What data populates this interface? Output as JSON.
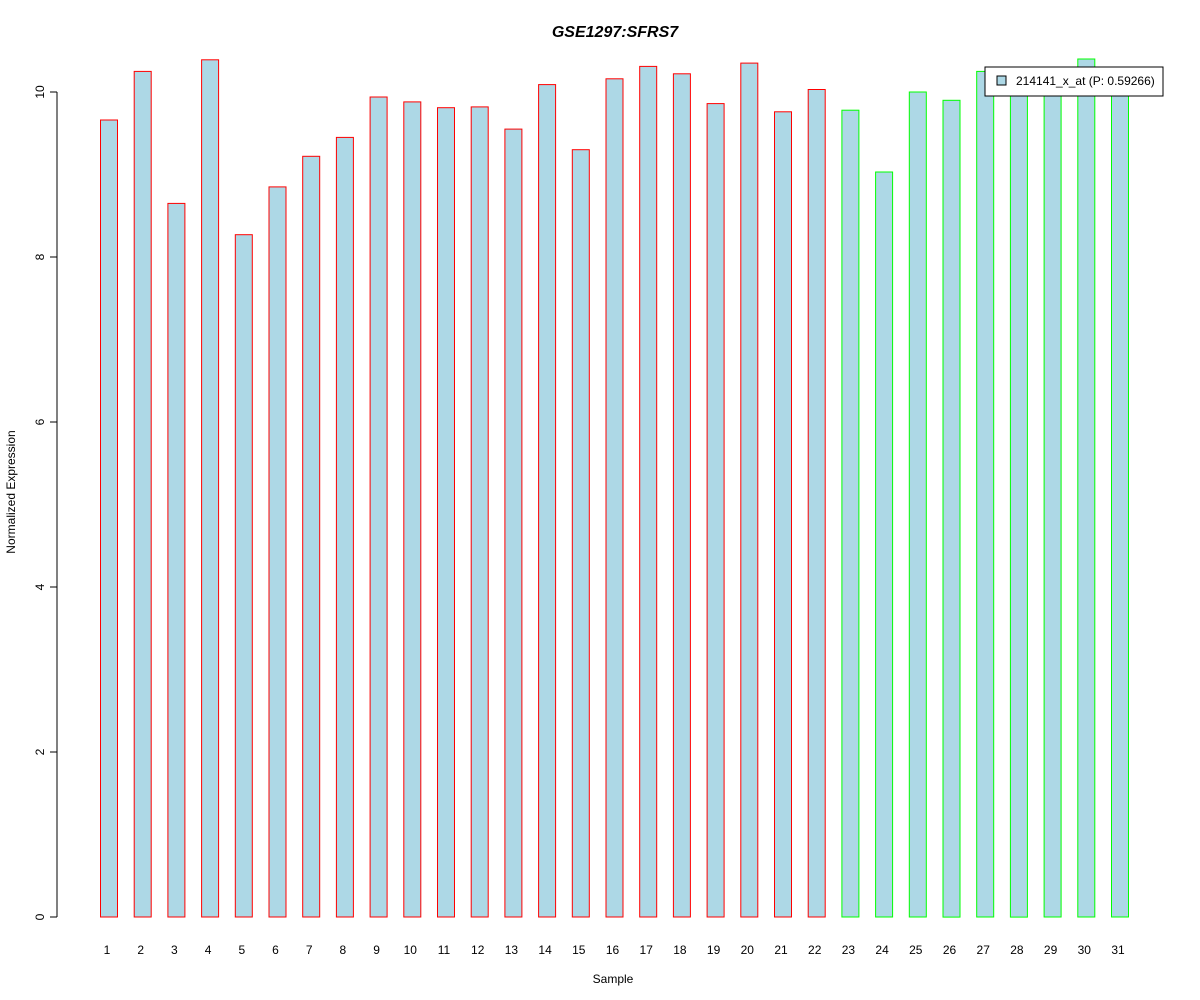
{
  "chart_data": {
    "type": "bar",
    "title": "GSE1297:SFRS7",
    "title_color": "#0000ff",
    "xlabel": "Sample",
    "ylabel": "Normalized Expression",
    "ylim": [
      0,
      10.5
    ],
    "yticks": [
      0,
      2,
      4,
      6,
      8,
      10
    ],
    "grid": false,
    "legend_position": "top-right",
    "fill_color": "#add8e6",
    "categories": [
      "1",
      "2",
      "3",
      "4",
      "5",
      "6",
      "7",
      "8",
      "9",
      "10",
      "11",
      "12",
      "13",
      "14",
      "15",
      "16",
      "17",
      "18",
      "19",
      "20",
      "21",
      "22",
      "23",
      "24",
      "25",
      "26",
      "27",
      "28",
      "29",
      "30",
      "31"
    ],
    "series": [
      {
        "name": "214141_x_at (P: 0.59266)",
        "values": [
          9.66,
          10.25,
          8.65,
          10.39,
          8.27,
          8.85,
          9.22,
          9.45,
          9.94,
          9.88,
          9.81,
          9.82,
          9.55,
          10.09,
          9.3,
          10.16,
          10.31,
          10.22,
          9.86,
          10.35,
          9.76,
          10.03,
          9.78,
          9.03,
          10.0,
          9.9,
          10.25,
          10.1,
          10.2,
          10.4,
          10.05
        ]
      }
    ],
    "groups": [
      {
        "border_color": "#ff0000",
        "from": 1,
        "to": 22
      },
      {
        "border_color": "#00ff00",
        "from": 23,
        "to": 31
      }
    ]
  }
}
